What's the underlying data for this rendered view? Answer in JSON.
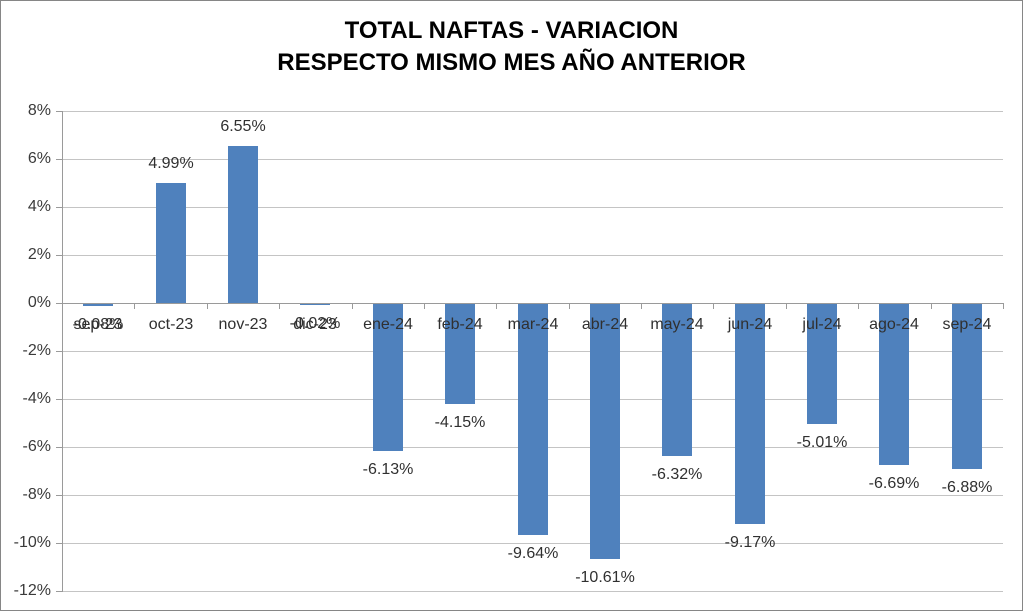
{
  "chart_data": {
    "type": "bar",
    "title_line1": "TOTAL NAFTAS - VARIACION",
    "title_line2": "RESPECTO MISMO MES AÑO ANTERIOR",
    "categories": [
      "sep-23",
      "oct-23",
      "nov-23",
      "dic-23",
      "ene-24",
      "feb-24",
      "mar-24",
      "abr-24",
      "may-24",
      "jun-24",
      "jul-24",
      "ago-24",
      "sep-24"
    ],
    "values": [
      -0.08,
      4.99,
      6.55,
      -0.02,
      -6.13,
      -4.15,
      -9.64,
      -10.61,
      -6.32,
      -9.17,
      -5.01,
      -6.69,
      -6.88
    ],
    "data_labels": [
      "-0.08%",
      "4.99%",
      "6.55%",
      "-0.02%",
      "-6.13%",
      "-4.15%",
      "-9.64%",
      "-10.61%",
      "-6.32%",
      "-9.17%",
      "-5.01%",
      "-6.69%",
      "-6.88%"
    ],
    "xlabel": "",
    "ylabel": "",
    "ylim": [
      -12,
      8
    ],
    "ytick_step": 2,
    "ytick_labels": [
      "8%",
      "6%",
      "4%",
      "2%",
      "0%",
      "-2%",
      "-4%",
      "-6%",
      "-8%",
      "-10%",
      "-12%"
    ],
    "ytick_values": [
      8,
      6,
      4,
      2,
      0,
      -2,
      -4,
      -6,
      -8,
      -10,
      -12
    ],
    "grid": true,
    "legend": "none",
    "bar_color": "#4F81BD",
    "gridline_color": "#C4C4C4",
    "axis_color": "#9A9A9A",
    "label_color": "#303030"
  }
}
